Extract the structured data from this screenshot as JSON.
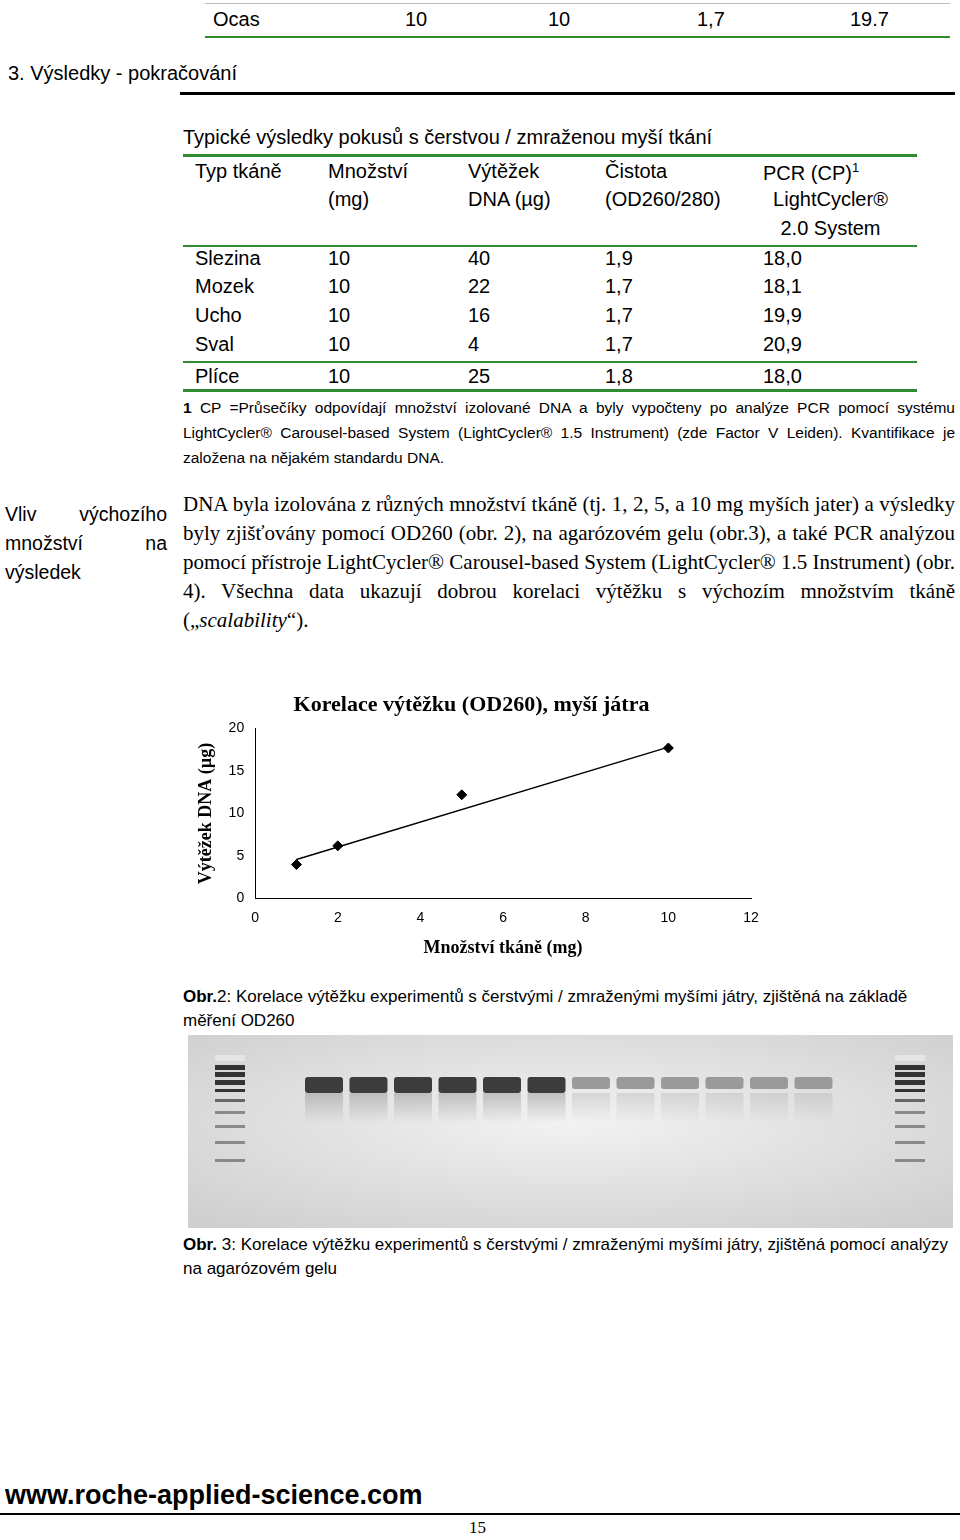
{
  "page": {
    "prev_table_row": [
      "Ocas",
      "10",
      "10",
      "1,7",
      "19.7"
    ],
    "section_title": "3. Výsledky - pokračování",
    "table": {
      "title": "Typické výsledky pokusů s čerstvou / zmraženou myší tkání",
      "header": [
        {
          "lines": [
            "Typ tkáně"
          ]
        },
        {
          "lines": [
            "Množství",
            "(mg)"
          ]
        },
        {
          "lines": [
            "Výtěžek",
            "DNA (µg)"
          ]
        },
        {
          "lines": [
            "Čistota",
            "(OD260/280)"
          ]
        },
        {
          "lines": [
            "PCR (CP)",
            "LightCycler®",
            "2.0 System"
          ],
          "sup": "1"
        }
      ],
      "rows": [
        [
          "Slezina",
          "10",
          "40",
          "1,9",
          "18,0"
        ],
        [
          "Mozek",
          "10",
          "22",
          "1,7",
          "18,1"
        ],
        [
          "Ucho",
          "10",
          "16",
          "1,7",
          "19,9"
        ],
        [
          "Sval",
          "10",
          "4",
          "1,7",
          "20,9"
        ],
        [
          "Plíce",
          "10",
          "25",
          "1,8",
          "18,0"
        ]
      ],
      "footnote": {
        "mark": "1",
        "text": "CP =Průsečíky odpovídají množství izolované DNA a byly vypočteny po analýze PCR pomocí systému LightCycler® Carousel-based System (LightCycler® 1.5 Instrument) (zde Factor V Leiden). Kvantifikace je založena na nějakém standardu DNA."
      }
    },
    "side_heading": "Vliv výchozího množství na výsledek",
    "paragraph": [
      "DNA byla izolována z různých množství tkáně (tj. 1, 2, 5, a 10 mg myších jater) a výsledky byly zjišťovány pomocí OD260 (obr. 2), na agarózovém gelu (obr.3), a také PCR analýzou pomocí přístroje LightCycler® Carousel-based System (LightCycler® 1.5 Instrument) (obr. 4). Všechna data ukazují dobrou korelaci výtěžku s výchozím množstvím tkáně („",
      "scalability",
      "“)."
    ],
    "figure2_caption": {
      "bold": "Obr.",
      "text": "2: Korelace výtěžku experimentů s čerstvými / zmraženými myšími játry, zjištěná na základě měření OD260"
    },
    "figure3_caption": {
      "bold": "Obr.",
      "text": " 3: Korelace výtěžku experimentů s čerstvými / zmraženými myšími játry, zjištěná pomocí analýzy na agarózovém gelu"
    },
    "footer": {
      "url": "www.roche-applied-science.com",
      "page_number": "15"
    }
  },
  "chart_data": {
    "type": "scatter",
    "title": "Korelace výtěžku (OD260), myší játra",
    "x_label": "Množství tkáně (mg)",
    "y_label": "Výtěžek DNA (µg)",
    "x": [
      1,
      2,
      5,
      10
    ],
    "values": [
      4,
      6.2,
      12.2,
      17.7
    ],
    "trendline": {
      "x": [
        1,
        10
      ],
      "values": [
        4.6,
        17.8
      ]
    },
    "color": "#000000",
    "marker": "diamond",
    "xlim": [
      0,
      12
    ],
    "xticks": [
      0,
      2,
      4,
      6,
      8,
      10,
      12
    ],
    "ylim": [
      0,
      20
    ],
    "yticks": [
      0,
      5,
      10,
      15,
      20
    ],
    "grid": false
  }
}
